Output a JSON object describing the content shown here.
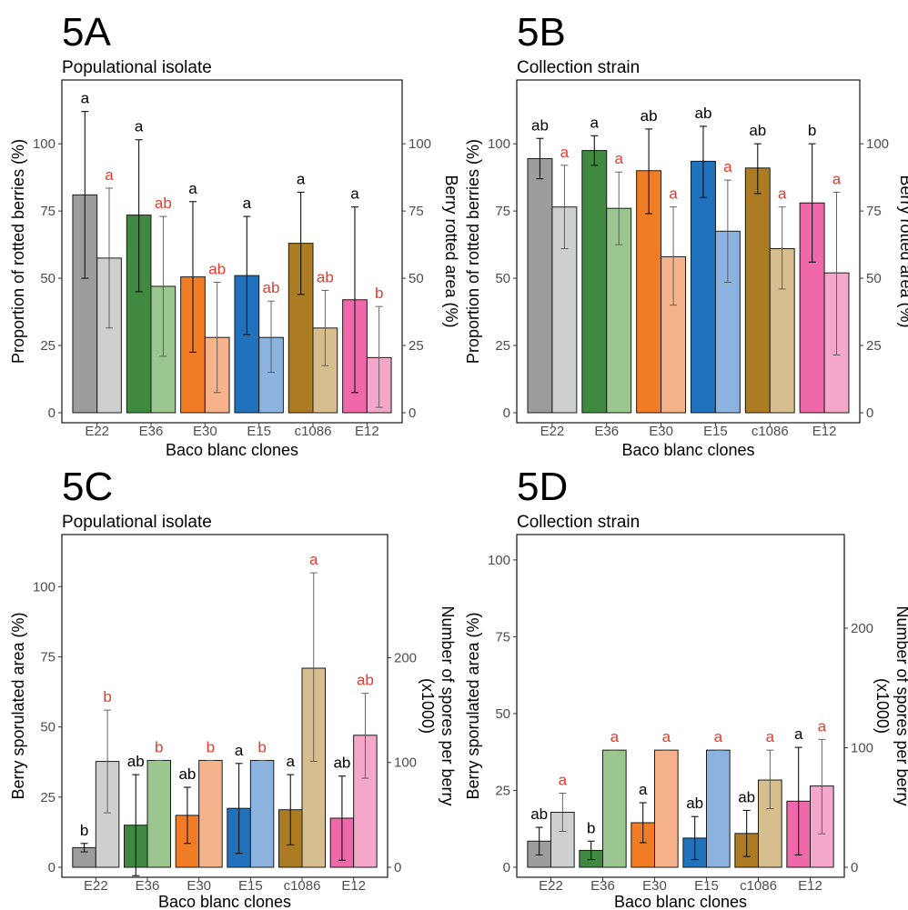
{
  "figure": {
    "xlabel": "Baco blanc clones"
  },
  "categories": [
    "E22",
    "E36",
    "E30",
    "E15",
    "c1086",
    "E12"
  ],
  "colors": {
    "dark": [
      "#9a9c9d",
      "#3f8a40",
      "#f07d26",
      "#1f72bb",
      "#ab7c23",
      "#ef68a9"
    ],
    "light": [
      "#ced0cf",
      "#9bc690",
      "#f6b38b",
      "#8cb3e0",
      "#d6be8f",
      "#f3a8ca"
    ],
    "sig_primary": "#000000",
    "sig_secondary": "#e53a2e"
  },
  "chart_data": [
    {
      "panel": "5A",
      "subtitle": "Populational isolate",
      "type": "bar",
      "ylabel_left": "Proportion of rotted berries (%)",
      "ylabel_right": "Berry rotted area (%)",
      "left_ticks": [
        "0",
        "25",
        "50",
        "75",
        "100"
      ],
      "right_ticks": [
        "0",
        "25",
        "50",
        "75",
        "100"
      ],
      "ylim_left": [
        0,
        120
      ],
      "ylim_right": [
        0,
        120
      ],
      "series": [
        {
          "name": "",
          "values": [
            81,
            73.5,
            50.5,
            51,
            63,
            42
          ],
          "err_low": [
            50,
            45,
            22.5,
            29,
            44,
            7.5
          ],
          "err_high": [
            112,
            101.5,
            78.5,
            73,
            82,
            76.5
          ],
          "letters": [
            "a",
            "a",
            "a",
            "a",
            "a",
            "a"
          ]
        },
        {
          "name": "",
          "values": [
            57.5,
            47,
            28,
            28,
            31.5,
            20.5
          ],
          "err_low": [
            31.5,
            21,
            7.5,
            15,
            17.5,
            2
          ],
          "err_high": [
            83.5,
            73,
            48.5,
            41.5,
            45.5,
            39.5
          ],
          "letters": [
            "a",
            "ab",
            "ab",
            "ab",
            "ab",
            "b"
          ]
        }
      ]
    },
    {
      "panel": "5B",
      "subtitle": "Collection strain",
      "type": "bar",
      "ylabel_left": "Proportion of rotted berries (%)",
      "ylabel_right": "Berry rotted area (%)",
      "left_ticks": [
        "0",
        "25",
        "50",
        "75",
        "100"
      ],
      "right_ticks": [
        "0",
        "25",
        "50",
        "75",
        "100"
      ],
      "ylim_left": [
        0,
        120
      ],
      "ylim_right": [
        0,
        120
      ],
      "series": [
        {
          "name": "",
          "values": [
            94.5,
            97.5,
            90,
            93.5,
            91,
            78
          ],
          "err_low": [
            87,
            92,
            74,
            80,
            81.5,
            56
          ],
          "err_high": [
            102,
            103,
            105.5,
            106.5,
            100,
            100
          ],
          "letters": [
            "ab",
            "a",
            "ab",
            "ab",
            "ab",
            "b"
          ]
        },
        {
          "name": "",
          "values": [
            76.5,
            76,
            58,
            67.5,
            61,
            52
          ],
          "err_low": [
            61,
            62.5,
            40,
            48.5,
            46,
            21.5
          ],
          "err_high": [
            92,
            89.5,
            76.5,
            86.5,
            76.5,
            82
          ],
          "letters": [
            "a",
            "a",
            "a",
            "a",
            "a",
            "a"
          ]
        }
      ]
    },
    {
      "panel": "5C",
      "subtitle": "Populational isolate",
      "type": "bar",
      "ylabel_left": "Berry sporulated area (%)",
      "ylabel_right": "Number of spores per berry",
      "ylabel_right2": "(x1000)",
      "left_ticks": [
        "0",
        "25",
        "50",
        "75",
        "100"
      ],
      "right_ticks": [
        "0",
        "100",
        "200"
      ],
      "ylim_left": [
        0,
        115
      ],
      "ylim_right": [
        0,
        308
      ],
      "series": [
        {
          "name": "",
          "values": [
            7,
            15,
            18.5,
            21,
            20.5,
            17.5
          ],
          "err_low": [
            5.5,
            -3,
            8.5,
            5,
            8,
            2.5
          ],
          "err_high": [
            8.5,
            33,
            28.5,
            37,
            33,
            32.5
          ],
          "letters": [
            "b",
            "ab",
            "ab",
            "a",
            "a",
            "ab"
          ]
        },
        {
          "name": "",
          "values": [
            101,
            102,
            102,
            102,
            190,
            126
          ],
          "err_low": [
            52,
            102,
            102,
            102,
            101,
            85
          ],
          "err_high": [
            150,
            102,
            102,
            102,
            281,
            166
          ],
          "letters": [
            "b",
            "b",
            "b",
            "b",
            "a",
            "ab"
          ]
        }
      ]
    },
    {
      "panel": "5D",
      "subtitle": "Collection strain",
      "type": "bar",
      "ylabel_left": "Berry sporulated area (%)",
      "ylabel_right": "Number of spores per berry",
      "ylabel_right2": "(x1000)",
      "left_ticks": [
        "0",
        "25",
        "50",
        "75",
        "100"
      ],
      "right_ticks": [
        "0",
        "100",
        "200"
      ],
      "ylim_left": [
        0,
        105
      ],
      "ylim_right": [
        0,
        270
      ],
      "series": [
        {
          "name": "",
          "values": [
            8.5,
            5.5,
            14.5,
            9.5,
            11,
            21.5
          ],
          "err_low": [
            4,
            2.5,
            8,
            2.5,
            3.5,
            4
          ],
          "err_high": [
            13,
            8.5,
            21,
            16.5,
            18.5,
            39
          ],
          "letters": [
            "ab",
            "b",
            "a",
            "ab",
            "ab",
            "a"
          ]
        },
        {
          "name": "",
          "values": [
            46,
            98,
            98,
            98,
            73,
            68
          ],
          "err_low": [
            30,
            98,
            98,
            98,
            49,
            28
          ],
          "err_high": [
            62,
            98,
            98,
            98,
            98,
            107
          ],
          "letters": [
            "a",
            "a",
            "a",
            "a",
            "a",
            "a"
          ]
        }
      ]
    }
  ]
}
